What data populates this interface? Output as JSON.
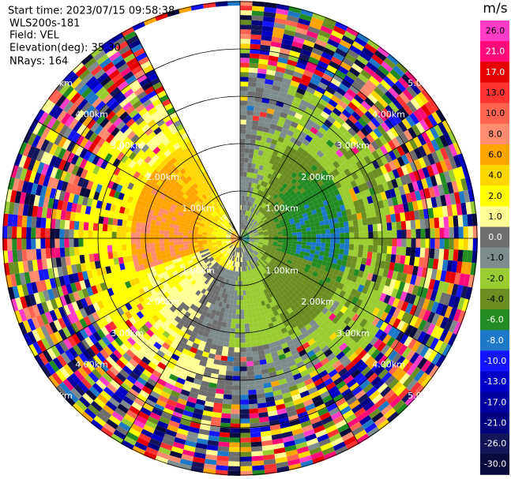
{
  "header": {
    "start_time": "Start time: 2023/07/15 09:58:38",
    "instrument": "WLS200s-181",
    "field": "Field: VEL",
    "elevation": "Elevation(deg): 35.30",
    "nrays": "NRays: 164"
  },
  "rings": [
    {
      "label": "1.00km"
    },
    {
      "label": "2.00km"
    },
    {
      "label": "3.00km"
    },
    {
      "label": "4.00km"
    },
    {
      "label": "5.00km"
    }
  ],
  "colorbar": {
    "unit": "m/s",
    "ticks": [
      {
        "value": 26,
        "label": "26.0"
      },
      {
        "value": 21,
        "label": "21.0"
      },
      {
        "value": 17,
        "label": "17.0"
      },
      {
        "value": 13,
        "label": "13.0"
      },
      {
        "value": 10,
        "label": "10.0"
      },
      {
        "value": 8,
        "label": "8.0"
      },
      {
        "value": 6,
        "label": "6.0"
      },
      {
        "value": 4,
        "label": "4.0"
      },
      {
        "value": 2,
        "label": "2.0"
      },
      {
        "value": 1,
        "label": "1.0"
      },
      {
        "value": 0,
        "label": "0.0"
      },
      {
        "value": -1,
        "label": "-1.0"
      },
      {
        "value": -2,
        "label": "-2.0"
      },
      {
        "value": -4,
        "label": "-4.0"
      },
      {
        "value": -6,
        "label": "-6.0"
      },
      {
        "value": -8,
        "label": "-8.0"
      },
      {
        "value": -10,
        "label": "-10.0"
      },
      {
        "value": -13,
        "label": "-13.0"
      },
      {
        "value": -17,
        "label": "-17.0"
      },
      {
        "value": -21,
        "label": "-21.0"
      },
      {
        "value": -26,
        "label": "-26.0"
      },
      {
        "value": -30,
        "label": "-30.0"
      }
    ],
    "colors": [
      "#ff3cc8",
      "#ff0a78",
      "#e60000",
      "#ff3232",
      "#ff6450",
      "#ff8c6e",
      "#ffa500",
      "#ffd700",
      "#ffff00",
      "#ffff96",
      "#6e6e6e",
      "#7f8c8d",
      "#9acd32",
      "#6b8e23",
      "#228b22",
      "#1e78c8",
      "#1414ff",
      "#0000c8",
      "#0000a0",
      "#000080",
      "#14145a",
      "#0a0a3c"
    ]
  }
}
